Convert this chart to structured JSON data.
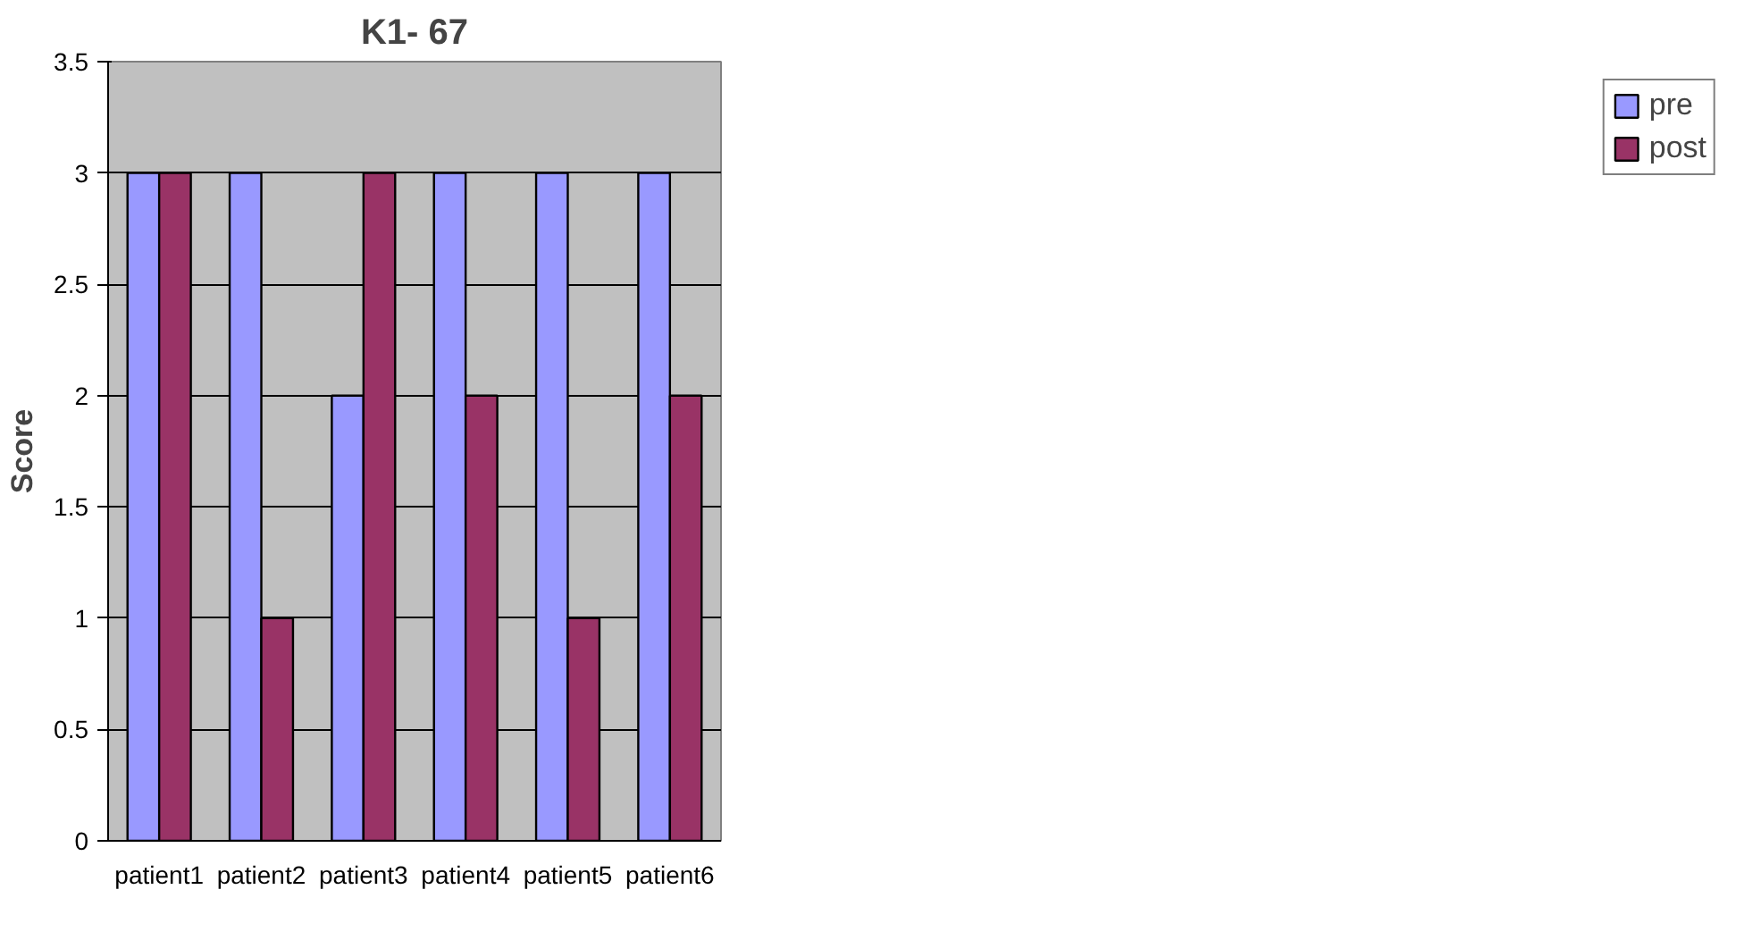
{
  "chart_data": {
    "type": "bar",
    "title": "K1- 67",
    "ylabel": "Score",
    "categories": [
      "patient1",
      "patient2",
      "patient3",
      "patient4",
      "patient5",
      "patient6"
    ],
    "series": [
      {
        "name": "pre",
        "color": "#9999ff",
        "values": [
          3,
          3,
          2,
          3,
          3,
          3
        ]
      },
      {
        "name": "post",
        "color": "#993366",
        "values": [
          3,
          1,
          3,
          2,
          1,
          2
        ]
      }
    ],
    "ylim": [
      0,
      3.5
    ],
    "yticks": [
      0,
      0.5,
      1,
      1.5,
      2,
      2.5,
      3,
      3.5
    ],
    "grid": "y",
    "legend": "right"
  }
}
